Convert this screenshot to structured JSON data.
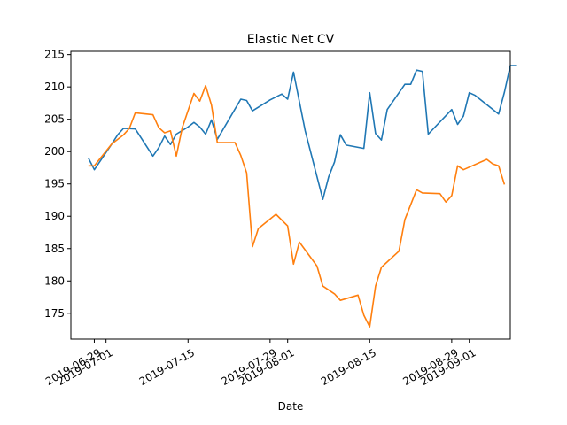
{
  "chart_data": {
    "type": "line",
    "title": "Elastic Net CV",
    "xlabel": "Date",
    "ylabel": "",
    "x_axis_type": "date",
    "xlim": [
      "2019-06-25",
      "2019-09-08"
    ],
    "ylim": [
      171,
      215.5
    ],
    "grid": false,
    "legend": "none",
    "yticks": [
      175,
      180,
      185,
      190,
      195,
      200,
      205,
      210,
      215
    ],
    "xticks": [
      {
        "date": "2019-06-29",
        "label": "2019-06-29"
      },
      {
        "date": "2019-07-01",
        "label": "2019-07-01"
      },
      {
        "date": "2019-07-15",
        "label": "2019-07-15"
      },
      {
        "date": "2019-07-29",
        "label": "2019-07-29"
      },
      {
        "date": "2019-08-01",
        "label": "2019-08-01"
      },
      {
        "date": "2019-08-15",
        "label": "2019-08-15"
      },
      {
        "date": "2019-08-29",
        "label": "2019-08-29"
      },
      {
        "date": "2019-09-01",
        "label": "2019-09-01"
      }
    ],
    "series": [
      {
        "color": "#1f77b4",
        "points": [
          [
            "2019-06-28",
            199.0
          ],
          [
            "2019-06-29",
            197.2
          ],
          [
            "2019-07-02",
            201.2
          ],
          [
            "2019-07-03",
            202.6
          ],
          [
            "2019-07-04",
            203.6
          ],
          [
            "2019-07-06",
            203.5
          ],
          [
            "2019-07-09",
            199.3
          ],
          [
            "2019-07-10",
            200.6
          ],
          [
            "2019-07-11",
            202.4
          ],
          [
            "2019-07-12",
            201.1
          ],
          [
            "2019-07-13",
            202.7
          ],
          [
            "2019-07-15",
            203.8
          ],
          [
            "2019-07-16",
            204.5
          ],
          [
            "2019-07-17",
            203.8
          ],
          [
            "2019-07-18",
            202.7
          ],
          [
            "2019-07-19",
            204.9
          ],
          [
            "2019-07-20",
            201.9
          ],
          [
            "2019-07-24",
            208.1
          ],
          [
            "2019-07-25",
            207.9
          ],
          [
            "2019-07-26",
            206.3
          ],
          [
            "2019-07-29",
            208.0
          ],
          [
            "2019-07-31",
            208.9
          ],
          [
            "2019-08-01",
            208.1
          ],
          [
            "2019-08-02",
            212.3
          ],
          [
            "2019-08-04",
            203.2
          ],
          [
            "2019-08-07",
            192.6
          ],
          [
            "2019-08-08",
            196.1
          ],
          [
            "2019-08-09",
            198.4
          ],
          [
            "2019-08-10",
            202.6
          ],
          [
            "2019-08-11",
            201.0
          ],
          [
            "2019-08-14",
            200.5
          ],
          [
            "2019-08-15",
            209.1
          ],
          [
            "2019-08-16",
            202.8
          ],
          [
            "2019-08-17",
            201.8
          ],
          [
            "2019-08-18",
            206.5
          ],
          [
            "2019-08-21",
            210.4
          ],
          [
            "2019-08-22",
            210.4
          ],
          [
            "2019-08-23",
            212.6
          ],
          [
            "2019-08-24",
            212.4
          ],
          [
            "2019-08-25",
            202.7
          ],
          [
            "2019-08-29",
            206.5
          ],
          [
            "2019-08-30",
            204.2
          ],
          [
            "2019-08-31",
            205.5
          ],
          [
            "2019-09-01",
            209.1
          ],
          [
            "2019-09-02",
            208.7
          ],
          [
            "2019-09-06",
            205.8
          ],
          [
            "2019-09-07",
            209.2
          ],
          [
            "2019-09-08",
            213.3
          ],
          [
            "2019-09-09",
            213.3
          ]
        ]
      },
      {
        "color": "#ff7f0e",
        "points": [
          [
            "2019-06-28",
            197.8
          ],
          [
            "2019-06-29",
            197.8
          ],
          [
            "2019-07-02",
            201.2
          ],
          [
            "2019-07-04",
            202.6
          ],
          [
            "2019-07-05",
            203.6
          ],
          [
            "2019-07-06",
            206.0
          ],
          [
            "2019-07-09",
            205.7
          ],
          [
            "2019-07-10",
            203.7
          ],
          [
            "2019-07-11",
            202.9
          ],
          [
            "2019-07-12",
            203.2
          ],
          [
            "2019-07-13",
            199.3
          ],
          [
            "2019-07-14",
            203.7
          ],
          [
            "2019-07-16",
            209.0
          ],
          [
            "2019-07-17",
            207.8
          ],
          [
            "2019-07-18",
            210.2
          ],
          [
            "2019-07-19",
            207.2
          ],
          [
            "2019-07-20",
            201.4
          ],
          [
            "2019-07-22",
            201.4
          ],
          [
            "2019-07-23",
            201.4
          ],
          [
            "2019-07-24",
            199.4
          ],
          [
            "2019-07-25",
            196.7
          ],
          [
            "2019-07-26",
            185.3
          ],
          [
            "2019-07-27",
            188.1
          ],
          [
            "2019-07-30",
            190.3
          ],
          [
            "2019-08-01",
            188.5
          ],
          [
            "2019-08-02",
            182.6
          ],
          [
            "2019-08-03",
            186.0
          ],
          [
            "2019-08-06",
            182.3
          ],
          [
            "2019-08-07",
            179.2
          ],
          [
            "2019-08-09",
            178.0
          ],
          [
            "2019-08-10",
            177.0
          ],
          [
            "2019-08-13",
            177.8
          ],
          [
            "2019-08-14",
            174.7
          ],
          [
            "2019-08-15",
            172.9
          ],
          [
            "2019-08-16",
            179.2
          ],
          [
            "2019-08-17",
            182.1
          ],
          [
            "2019-08-20",
            184.6
          ],
          [
            "2019-08-21",
            189.5
          ],
          [
            "2019-08-23",
            194.1
          ],
          [
            "2019-08-24",
            193.6
          ],
          [
            "2019-08-27",
            193.5
          ],
          [
            "2019-08-28",
            192.2
          ],
          [
            "2019-08-29",
            193.2
          ],
          [
            "2019-08-30",
            197.8
          ],
          [
            "2019-08-31",
            197.2
          ],
          [
            "2019-09-04",
            198.8
          ],
          [
            "2019-09-05",
            198.1
          ],
          [
            "2019-09-06",
            197.8
          ],
          [
            "2019-09-07",
            194.9
          ]
        ]
      }
    ]
  }
}
